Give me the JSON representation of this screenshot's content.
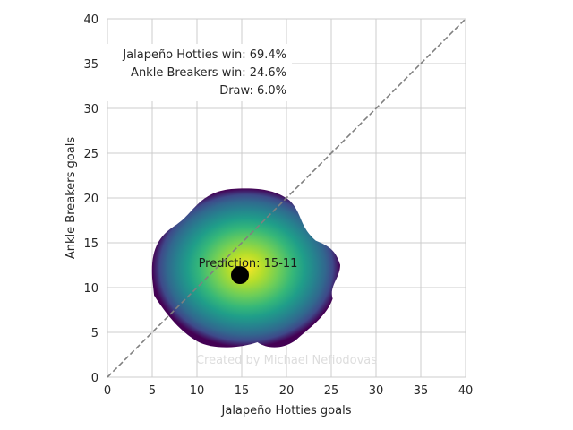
{
  "chart_data": {
    "type": "scatter",
    "xlabel": "Jalapeño Hotties goals",
    "ylabel": "Ankle Breakers goals",
    "xlim": [
      0,
      40
    ],
    "ylim": [
      0,
      40
    ],
    "xticks": [
      0,
      5,
      10,
      15,
      20,
      25,
      30,
      35,
      40
    ],
    "yticks": [
      0,
      5,
      10,
      15,
      20,
      25,
      30,
      35,
      40
    ],
    "grid": true,
    "diagonal_line": {
      "from": [
        0,
        0
      ],
      "to": [
        40,
        40
      ],
      "style": "dashed",
      "color": "#808080"
    },
    "density": {
      "center": [
        14.8,
        11.5
      ],
      "x_range": [
        5,
        26
      ],
      "y_range": [
        3,
        21
      ],
      "colormap": "viridis"
    },
    "prediction_point": {
      "x": 14.8,
      "y": 11.4,
      "color": "#000000"
    },
    "prediction_label": "Prediction: 15-11",
    "win_probabilities": [
      "Jalapeño Hotties win: 69.4%",
      "Ankle Breakers win: 24.6%",
      "Draw: 6.0%"
    ],
    "credit": "Created by Michael Nefiodovas",
    "colors": {
      "grid": "#cccccc",
      "axis_text": "#262626"
    }
  }
}
